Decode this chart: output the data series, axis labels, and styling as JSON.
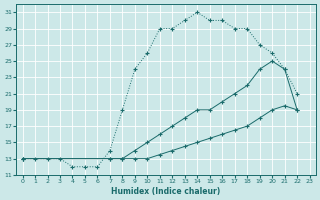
{
  "xlabel": "Humidex (Indice chaleur)",
  "bg_color": "#cce8e8",
  "grid_color": "#b0d0d0",
  "line_color": "#1a6b6b",
  "xlim": [
    -0.5,
    23.5
  ],
  "ylim": [
    11,
    32
  ],
  "xticks": [
    0,
    1,
    2,
    3,
    4,
    5,
    6,
    7,
    8,
    9,
    10,
    11,
    12,
    13,
    14,
    15,
    16,
    17,
    18,
    19,
    20,
    21,
    22,
    23
  ],
  "yticks": [
    11,
    13,
    15,
    17,
    19,
    21,
    23,
    25,
    27,
    29,
    31
  ],
  "line1_x": [
    0,
    1,
    2,
    3,
    4,
    5,
    6,
    7,
    8,
    9,
    10,
    11,
    12,
    13,
    14,
    15,
    16,
    17,
    18,
    19,
    20,
    21,
    22
  ],
  "line1_y": [
    13,
    13,
    13,
    13,
    12,
    12,
    12,
    14,
    19,
    24,
    26,
    29,
    29,
    30,
    31,
    30,
    30,
    29,
    29,
    27,
    26,
    24,
    21
  ],
  "line2_x": [
    0,
    7,
    8,
    9,
    10,
    11,
    12,
    13,
    14,
    15,
    16,
    17,
    18,
    19,
    20,
    21,
    22
  ],
  "line2_y": [
    13,
    13,
    13,
    14,
    15,
    16,
    17,
    18,
    19,
    19,
    20,
    21,
    22,
    24,
    25,
    24,
    19
  ],
  "line3_x": [
    0,
    7,
    8,
    9,
    10,
    11,
    12,
    13,
    14,
    15,
    16,
    17,
    18,
    19,
    20,
    21,
    22
  ],
  "line3_y": [
    13,
    13,
    13,
    13,
    13,
    13.5,
    14,
    14.5,
    15,
    15.5,
    16,
    16.5,
    17,
    18,
    19,
    19.5,
    19
  ]
}
